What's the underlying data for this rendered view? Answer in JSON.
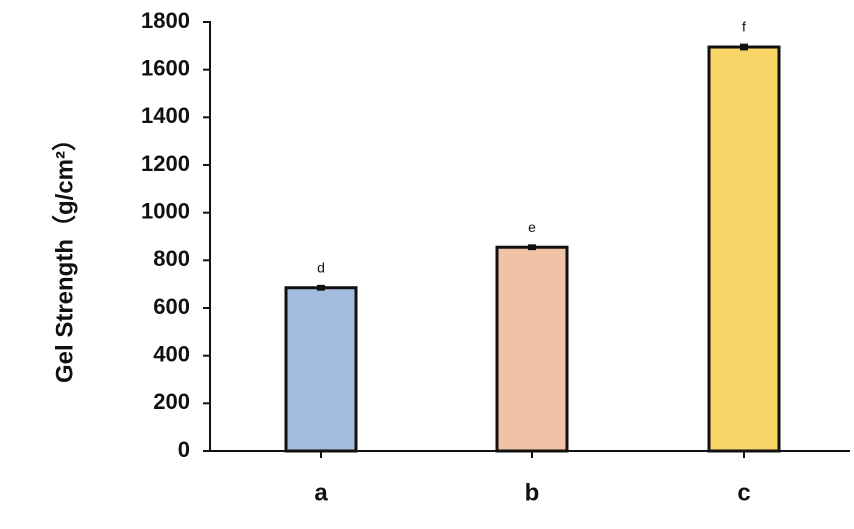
{
  "chart_data": {
    "type": "bar",
    "y_label": "Gel Strength（g/cm²）",
    "categories": [
      "a",
      "b",
      "c"
    ],
    "values": [
      685,
      855,
      1695
    ],
    "errors": [
      8,
      8,
      10
    ],
    "colors": [
      "#a3bbdc",
      "#f0c2a6",
      "#f8d566"
    ],
    "annotations": [
      "d",
      "e",
      "f"
    ],
    "ylim": [
      0,
      1800
    ],
    "yticks": [
      0,
      200,
      400,
      600,
      800,
      1000,
      1200,
      1400,
      1600,
      1800
    ],
    "grid": false
  }
}
